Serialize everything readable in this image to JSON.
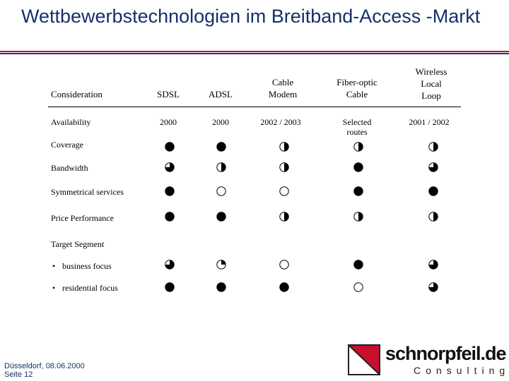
{
  "title": "Wettbewerbstechnologien im Breitband-Access -Markt",
  "columns": {
    "consideration": "Consideration",
    "sdsl": "SDSL",
    "adsl": "ADSL",
    "cable_l1": "Cable",
    "cable_l2": "Modem",
    "fiber_l1": "Fiber-optic",
    "fiber_l2": "Cable",
    "wll_l1": "Wireless",
    "wll_l2": "Local",
    "wll_l3": "Loop"
  },
  "rows": {
    "availability": {
      "label": "Availability",
      "sdsl": "2000",
      "adsl": "2000",
      "cable": "2002 / 2003",
      "fiber_l1": "Selected",
      "fiber_l2": "routes",
      "wll": "2001 / 2002"
    },
    "coverage": {
      "label": "Coverage",
      "levels": [
        1,
        1,
        0.5,
        0.5,
        0.5
      ]
    },
    "bandwidth": {
      "label": "Bandwidth",
      "levels": [
        0.75,
        0.5,
        0.5,
        1,
        0.75
      ]
    },
    "symmetrical": {
      "label": "Symmetrical services",
      "levels": [
        1,
        0,
        0,
        1,
        1
      ]
    },
    "price": {
      "label": "Price Performance",
      "levels": [
        1,
        1,
        0.5,
        0.5,
        0.5
      ]
    },
    "target": {
      "label": "Target Segment"
    },
    "business": {
      "bullet": "•",
      "label": "business focus",
      "levels": [
        0.75,
        0.25,
        0,
        1,
        0.75
      ]
    },
    "residential": {
      "bullet": "•",
      "label": "residential focus",
      "levels": [
        1,
        1,
        1,
        0,
        0.75
      ]
    }
  },
  "footer": {
    "line1": "Düsseldorf, 08.06.2000",
    "line2": "Seite 12"
  },
  "logo": {
    "name": "schnorpfeil.de",
    "sub": "Consulting",
    "colors": {
      "red": "#c8102e",
      "dark": "#222222"
    }
  }
}
